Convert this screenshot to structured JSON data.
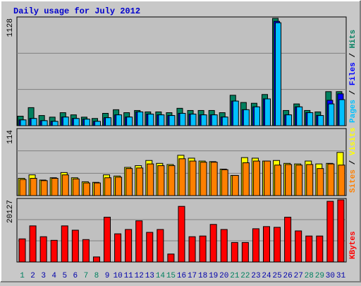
{
  "chart_data": {
    "type": "bar",
    "title": "Daily usage for July 2012",
    "categories": [
      "1",
      "2",
      "3",
      "4",
      "5",
      "6",
      "7",
      "8",
      "9",
      "10",
      "11",
      "12",
      "13",
      "14",
      "15",
      "16",
      "17",
      "18",
      "19",
      "20",
      "21",
      "22",
      "23",
      "24",
      "25",
      "26",
      "27",
      "28",
      "29",
      "30",
      "31"
    ],
    "weekend": [
      "1",
      "7",
      "8",
      "14",
      "15",
      "21",
      "22",
      "28",
      "29"
    ],
    "weekday_color": "#0000aa",
    "weekend_color": "#00805f",
    "separator": " / ",
    "panels": [
      {
        "ymax": 1128,
        "series": [
          {
            "name": "Hits",
            "color": "#00805f",
            "values": [
              100,
              190,
              107,
              90,
              137,
              114,
              90,
              76,
              130,
              168,
              137,
              160,
              145,
              145,
              137,
              183,
              160,
              160,
              160,
              137,
              320,
              244,
              236,
              328,
              1128,
              160,
              229,
              160,
              145,
              358,
              358
            ]
          },
          {
            "name": "Files",
            "color": "#0000ff",
            "values": [
              61,
              76,
              53,
              46,
              91,
              76,
              69,
              46,
              84,
              114,
              91,
              145,
              122,
              114,
              107,
              130,
              122,
              114,
              114,
              91,
              259,
              168,
              198,
              282,
              1097,
              114,
              198,
              137,
              107,
              267,
              335
            ]
          },
          {
            "name": "Pages",
            "color": "#00c0ff",
            "values": [
              61,
              76,
              53,
              46,
              91,
              76,
              69,
              46,
              84,
              114,
              91,
              145,
              122,
              114,
              107,
              130,
              122,
              114,
              114,
              91,
              259,
              168,
              198,
              282,
              1082,
              114,
              198,
              137,
              107,
              229,
              274
            ]
          }
        ]
      },
      {
        "ymax": 114,
        "series": [
          {
            "name": "Visits",
            "color": "#ffff00",
            "values": [
              30,
              36,
              27,
              31,
              40,
              31,
              24,
              23,
              36,
              34,
              49,
              52,
              61,
              56,
              54,
              70,
              65,
              60,
              59,
              46,
              35,
              66,
              65,
              60,
              61,
              56,
              55,
              60,
              55,
              56,
              75
            ]
          },
          {
            "name": "Sites",
            "color": "#ff8000",
            "values": [
              28,
              30,
              26,
              30,
              36,
              29,
              22,
              22,
              31,
              32,
              47,
              48,
              55,
              52,
              52,
              64,
              60,
              58,
              58,
              45,
              35,
              57,
              60,
              60,
              53,
              54,
              53,
              54,
              47,
              55,
              53
            ]
          }
        ]
      },
      {
        "ymax": 20127,
        "series": [
          {
            "name": "KBytes",
            "color": "#ff0000",
            "values": [
              7490,
              11700,
              8190,
              7020,
              11700,
              10300,
              7260,
              1640,
              14510,
              9130,
              10530,
              13340,
              9600,
              10530,
              2580,
              18020,
              8190,
              8420,
              12170,
              10530,
              6320,
              6320,
              10770,
              11470,
              11230,
              14510,
              10070,
              8420,
              8420,
              19660,
              20127
            ]
          }
        ]
      }
    ]
  }
}
